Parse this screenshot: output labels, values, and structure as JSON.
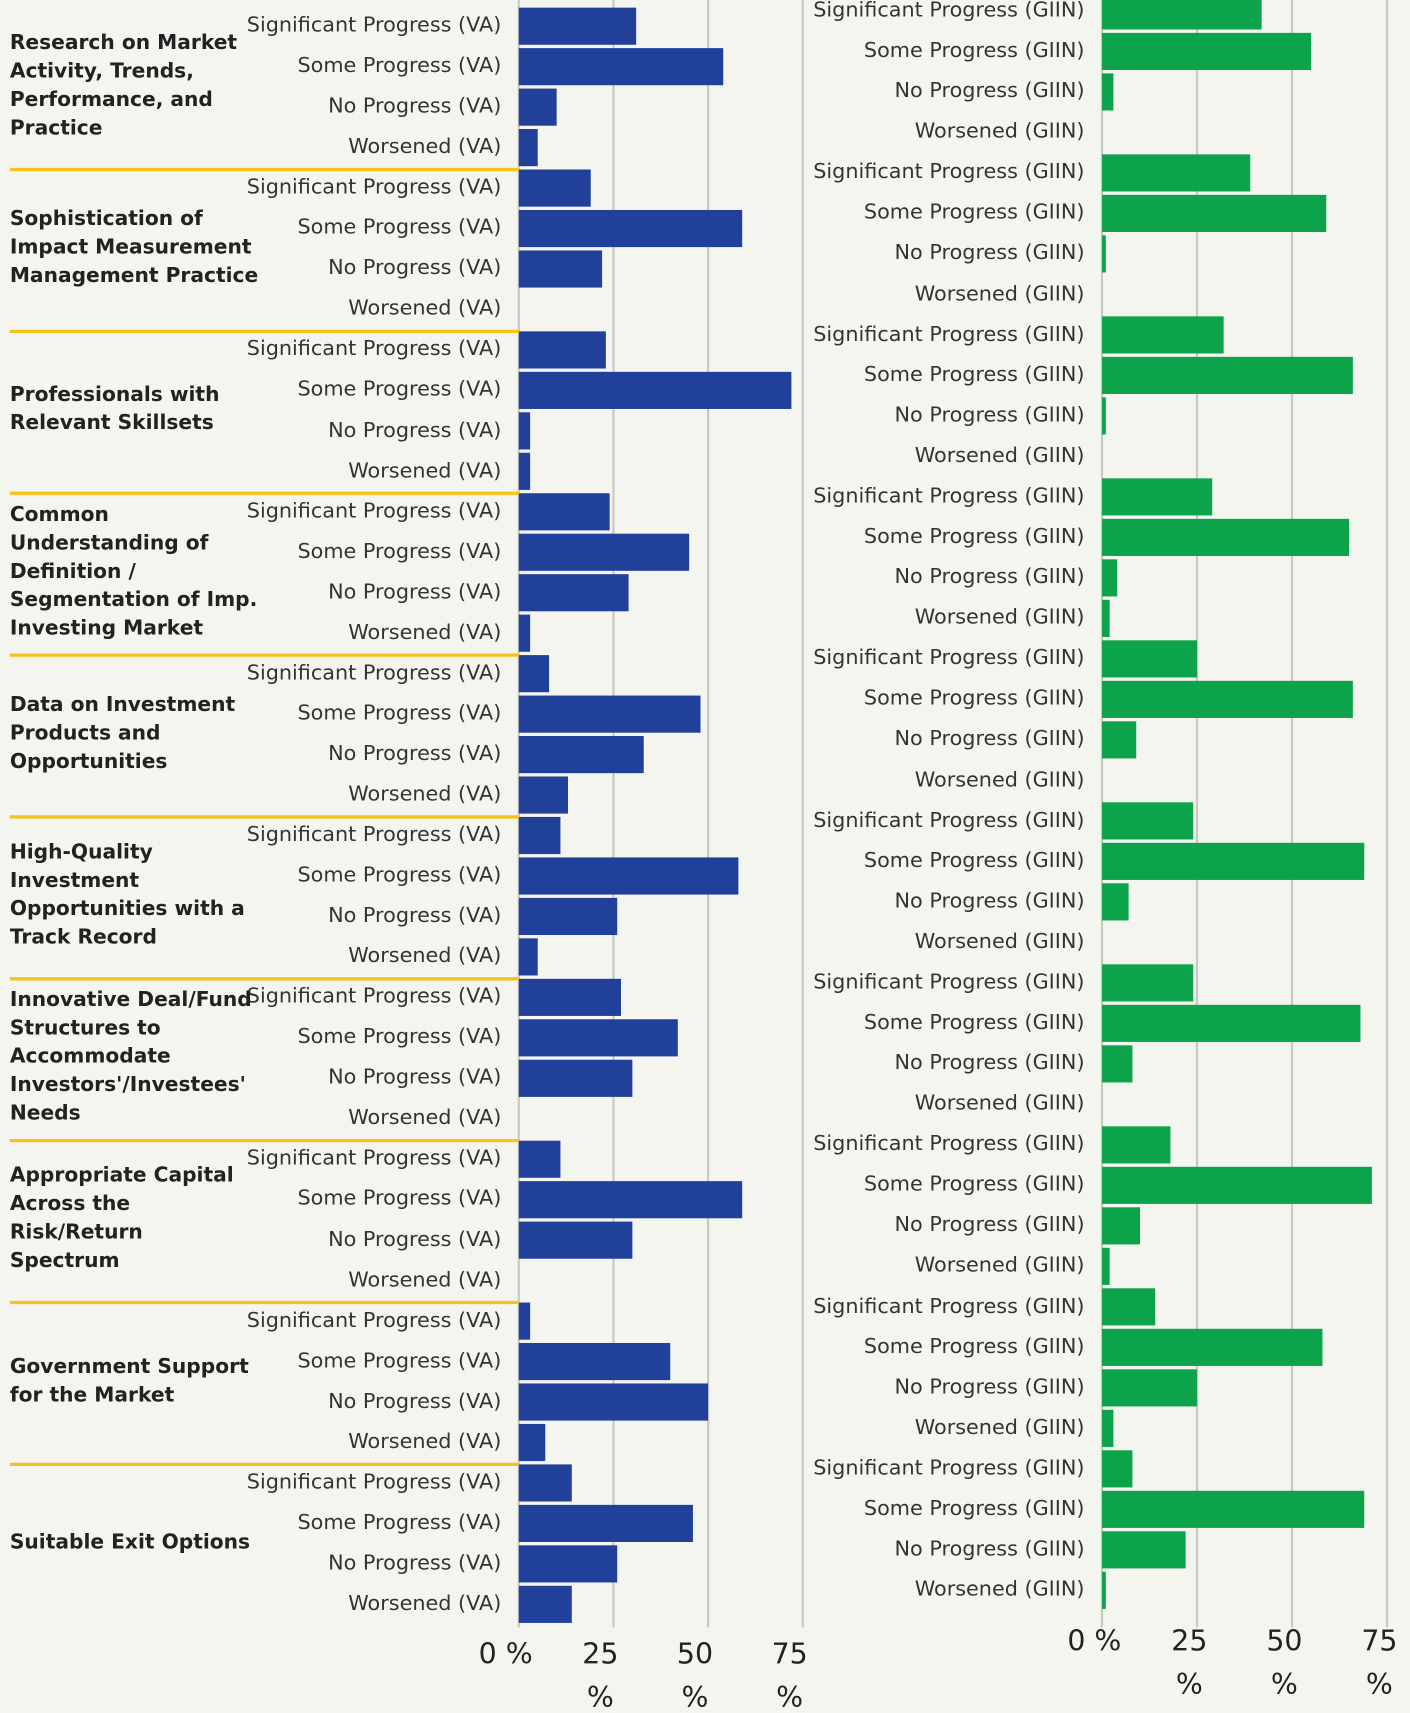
{
  "chart_data": [
    {
      "type": "bar",
      "orientation": "horizontal",
      "color": "#21409a",
      "groups": [
        "Research on Market Activity, Trends, Performance, and Practice",
        "Sophistication of Impact Measurement Management Practice",
        "Professionals with Relevant Skillsets",
        "Common Understanding of Definition / Segmentation of Imp. Investing Market",
        "Data on Investment Products and Opportunities",
        "High-Quality Investment Opportunities with a Track Record",
        "Innovative Deal/Fund Structures to Accommodate Investors'/Investees' Needs",
        "Appropriate Capital Across the Risk/Return Spectrum",
        "Government Support for the Market",
        "Suitable Exit Options"
      ],
      "categories": [
        "Significant Progress (VA)",
        "Some Progress (VA)",
        "No Progress (VA)",
        "Worsened (VA)",
        "Significant Progress (VA)",
        "Some Progress (VA)",
        "No Progress (VA)",
        "Worsened (VA)",
        "Significant Progress (VA)",
        "Some Progress (VA)",
        "No Progress (VA)",
        "Worsened (VA)",
        "Significant Progress (VA)",
        "Some Progress (VA)",
        "No Progress (VA)",
        "Worsened (VA)",
        "Significant Progress (VA)",
        "Some Progress (VA)",
        "No Progress (VA)",
        "Worsened (VA)",
        "Significant Progress (VA)",
        "Some Progress (VA)",
        "No Progress (VA)",
        "Worsened (VA)",
        "Significant Progress (VA)",
        "Some Progress (VA)",
        "No Progress (VA)",
        "Worsened (VA)",
        "Significant Progress (VA)",
        "Some Progress (VA)",
        "No Progress (VA)",
        "Worsened (VA)",
        "Significant Progress (VA)",
        "Some Progress (VA)",
        "No Progress (VA)",
        "Worsened (VA)",
        "Significant Progress (VA)",
        "Some Progress (VA)",
        "No Progress (VA)",
        "Worsened (VA)"
      ],
      "values": [
        31,
        54,
        10,
        5,
        19,
        59,
        22,
        0,
        23,
        72,
        3,
        3,
        24,
        45,
        29,
        3,
        8,
        48,
        33,
        13,
        11,
        58,
        26,
        5,
        27,
        42,
        30,
        0,
        11,
        59,
        30,
        0,
        3,
        40,
        50,
        7,
        14,
        46,
        26,
        14
      ],
      "xlim": [
        0,
        75
      ],
      "xticks": [
        {
          "value": 0,
          "label": "0 %"
        },
        {
          "value": 25,
          "label": "25 %"
        },
        {
          "value": 50,
          "label": "50 %"
        },
        {
          "value": 75,
          "label": "75 %"
        }
      ],
      "grid": true
    },
    {
      "type": "bar",
      "orientation": "horizontal",
      "color": "#0da34b",
      "categories": [
        "Significant Progress (GIIN)",
        "Some Progress (GIIN)",
        "No Progress (GIIN)",
        "Worsened (GIIN)",
        "Significant Progress (GIIN)",
        "Some Progress (GIIN)",
        "No Progress (GIIN)",
        "Worsened (GIIN)",
        "Significant Progress (GIIN)",
        "Some Progress (GIIN)",
        "No Progress (GIIN)",
        "Worsened (GIIN)",
        "Significant Progress (GIIN)",
        "Some Progress (GIIN)",
        "No Progress (GIIN)",
        "Worsened (GIIN)",
        "Significant Progress (GIIN)",
        "Some Progress (GIIN)",
        "No Progress (GIIN)",
        "Worsened (GIIN)",
        "Significant Progress (GIIN)",
        "Some Progress (GIIN)",
        "No Progress (GIIN)",
        "Worsened (GIIN)",
        "Significant Progress (GIIN)",
        "Some Progress (GIIN)",
        "No Progress (GIIN)",
        "Worsened (GIIN)",
        "Significant Progress (GIIN)",
        "Some Progress (GIIN)",
        "No Progress (GIIN)",
        "Worsened (GIIN)",
        "Significant Progress (GIIN)",
        "Some Progress (GIIN)",
        "No Progress (GIIN)",
        "Worsened (GIIN)",
        "Significant Progress (GIIN)",
        "Some Progress (GIIN)",
        "No Progress (GIIN)",
        "Worsened (GIIN)"
      ],
      "values": [
        42,
        55,
        3,
        0,
        39,
        59,
        1,
        0,
        32,
        66,
        1,
        0,
        29,
        65,
        4,
        2,
        25,
        66,
        9,
        0,
        24,
        69,
        7,
        0,
        24,
        68,
        8,
        0,
        18,
        71,
        10,
        2,
        14,
        58,
        25,
        3,
        8,
        69,
        22,
        1
      ],
      "xlim": [
        0,
        75
      ],
      "xticks": [
        {
          "value": 0,
          "label": "0 %"
        },
        {
          "value": 25,
          "label": "25 %"
        },
        {
          "value": 50,
          "label": "50 %"
        },
        {
          "value": 75,
          "label": "75 %"
        }
      ],
      "grid": true
    }
  ]
}
